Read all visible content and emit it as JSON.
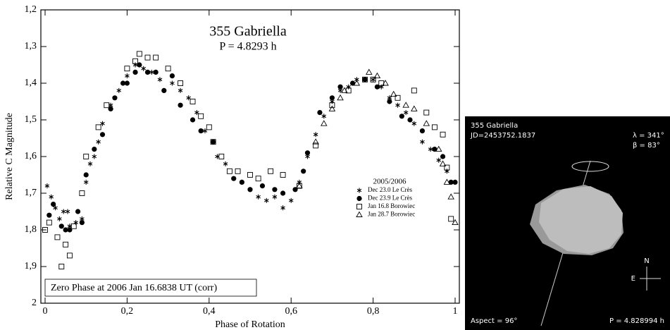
{
  "chart_data": {
    "type": "scatter",
    "title": "355 Gabriella",
    "subtitle": "P = 4.8293 h",
    "x_label": "Phase of Rotation",
    "y_label": "Relative C Magnitude",
    "annotation": "Zero Phase at 2006 Jan 16.6838 UT (corr)",
    "legend_title": "2005/2006",
    "y_inverted": true,
    "xlim": [
      0,
      1
    ],
    "ylim": [
      1.2,
      2
    ],
    "xticks": [
      0,
      {
        "value": 0.2,
        "label": "0,2"
      },
      {
        "value": 0.4,
        "label": "0,4"
      },
      {
        "value": 0.6,
        "label": "0,6"
      },
      {
        "value": 0.8,
        "label": "0,8"
      },
      1
    ],
    "yticks": [
      {
        "value": 1.2,
        "label": "1,2"
      },
      {
        "value": 1.3,
        "label": "1,3"
      },
      {
        "value": 1.4,
        "label": "1,4"
      },
      {
        "value": 1.5,
        "label": "1,5"
      },
      {
        "value": 1.6,
        "label": "1,6"
      },
      {
        "value": 1.7,
        "label": "1,7"
      },
      {
        "value": 1.8,
        "label": "1,8"
      },
      {
        "value": 1.9,
        "label": "1,9"
      },
      2
    ],
    "series": [
      {
        "name": "Dec 23.0 Le Crès",
        "marker": "asterisk",
        "color": "#000000",
        "x": [
          0.005,
          0.015,
          0.025,
          0.035,
          0.045,
          0.055,
          0.06,
          0.075,
          0.09,
          0.1,
          0.11,
          0.12,
          0.13,
          0.14,
          0.16,
          0.18,
          0.2,
          0.22,
          0.24,
          0.26,
          0.28,
          0.31,
          0.33,
          0.35,
          0.37,
          0.39,
          0.42,
          0.44,
          0.48,
          0.5,
          0.52,
          0.54,
          0.56,
          0.58,
          0.6,
          0.62,
          0.64,
          0.66,
          0.68,
          0.7,
          0.72,
          0.74,
          0.76,
          0.78,
          0.8,
          0.82,
          0.84,
          0.86,
          0.88,
          0.9,
          0.92,
          0.94,
          0.96,
          0.98
        ],
        "values": [
          1.68,
          1.71,
          1.74,
          1.77,
          1.75,
          1.75,
          1.79,
          1.78,
          1.77,
          1.67,
          1.62,
          1.6,
          1.56,
          1.51,
          1.46,
          1.42,
          1.38,
          1.35,
          1.36,
          1.37,
          1.39,
          1.4,
          1.42,
          1.44,
          1.48,
          1.53,
          1.6,
          1.62,
          1.67,
          1.69,
          1.71,
          1.72,
          1.71,
          1.74,
          1.72,
          1.67,
          1.6,
          1.54,
          1.49,
          1.45,
          1.42,
          1.41,
          1.39,
          1.39,
          1.39,
          1.41,
          1.44,
          1.46,
          1.48,
          1.51,
          1.56,
          1.58,
          1.61,
          1.64
        ]
      },
      {
        "name": "Dec 23.9 Le Crès",
        "marker": "circle",
        "color": "#000000",
        "x": [
          0.01,
          0.02,
          0.04,
          0.05,
          0.06,
          0.08,
          0.09,
          0.1,
          0.12,
          0.14,
          0.16,
          0.17,
          0.19,
          0.2,
          0.22,
          0.23,
          0.25,
          0.27,
          0.29,
          0.31,
          0.33,
          0.36,
          0.38,
          0.41,
          0.46,
          0.48,
          0.5,
          0.53,
          0.56,
          0.58,
          0.61,
          0.63,
          0.64,
          0.67,
          0.7,
          0.72,
          0.75,
          0.78,
          0.81,
          0.84,
          0.87,
          0.89,
          0.92,
          0.95,
          0.97,
          0.99,
          1.0
        ],
        "values": [
          1.76,
          1.73,
          1.79,
          1.8,
          1.8,
          1.75,
          1.78,
          1.65,
          1.58,
          1.54,
          1.47,
          1.44,
          1.4,
          1.4,
          1.37,
          1.35,
          1.37,
          1.37,
          1.42,
          1.38,
          1.46,
          1.5,
          1.53,
          1.56,
          1.66,
          1.67,
          1.69,
          1.68,
          1.69,
          1.7,
          1.69,
          1.64,
          1.59,
          1.48,
          1.44,
          1.41,
          1.4,
          1.39,
          1.41,
          1.45,
          1.49,
          1.5,
          1.53,
          1.58,
          1.6,
          1.67,
          1.67
        ]
      },
      {
        "name": "Jan 16.8 Borowiec",
        "marker": "square",
        "color": "#000000",
        "x": [
          0.0,
          0.01,
          0.03,
          0.04,
          0.05,
          0.06,
          0.07,
          0.09,
          0.1,
          0.13,
          0.15,
          0.2,
          0.22,
          0.23,
          0.25,
          0.27,
          0.3,
          0.33,
          0.36,
          0.38,
          0.4,
          0.41,
          0.43,
          0.45,
          0.47,
          0.5,
          0.52,
          0.55,
          0.58,
          0.62,
          0.66,
          0.7,
          0.74,
          0.78,
          0.8,
          0.82,
          0.86,
          0.9,
          0.93,
          0.95,
          0.97,
          0.98,
          0.99
        ],
        "values": [
          1.8,
          1.78,
          1.82,
          1.9,
          1.84,
          1.87,
          1.79,
          1.7,
          1.6,
          1.52,
          1.46,
          1.36,
          1.34,
          1.32,
          1.33,
          1.33,
          1.36,
          1.4,
          1.45,
          1.49,
          1.52,
          1.56,
          1.6,
          1.64,
          1.64,
          1.65,
          1.66,
          1.64,
          1.65,
          1.68,
          1.57,
          1.46,
          1.42,
          1.39,
          1.39,
          1.4,
          1.44,
          1.42,
          1.48,
          1.52,
          1.54,
          1.63,
          1.77
        ]
      },
      {
        "name": "Jan 28.7 Borowiec",
        "marker": "triangle",
        "color": "#000000",
        "x": [
          0.62,
          0.66,
          0.68,
          0.7,
          0.72,
          0.73,
          0.76,
          0.79,
          0.81,
          0.83,
          0.85,
          0.88,
          0.9,
          0.93,
          0.96,
          0.97,
          0.98,
          0.99,
          1.0
        ],
        "values": [
          1.68,
          1.56,
          1.51,
          1.47,
          1.44,
          1.42,
          1.4,
          1.37,
          1.38,
          1.4,
          1.43,
          1.46,
          1.47,
          1.51,
          1.58,
          1.62,
          1.67,
          1.71,
          1.78
        ]
      }
    ]
  },
  "panel": {
    "name": "355 Gabriella",
    "jd": "JD=2453752.1837",
    "lambda": "λ = 341°",
    "beta": "β =  83°",
    "north": "N",
    "east": "E",
    "aspect": "Aspect = 96°",
    "period": "P = 4.828994 h"
  }
}
